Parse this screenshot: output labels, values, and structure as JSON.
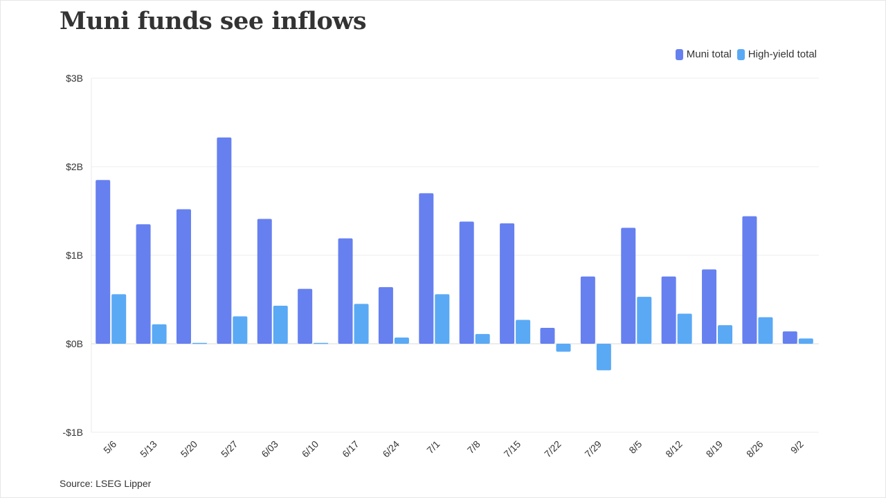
{
  "title": "Muni funds see inflows",
  "source": "Source: LSEG Lipper",
  "legend": [
    {
      "label": "Muni total",
      "color": "#6680f0"
    },
    {
      "label": "High-yield total",
      "color": "#5aa9f5"
    }
  ],
  "chart_data": {
    "type": "bar",
    "categories": [
      "5/6",
      "5/13",
      "5/20",
      "5/27",
      "6/03",
      "6/10",
      "6/17",
      "6/24",
      "7/1",
      "7/8",
      "7/15",
      "7/22",
      "7/29",
      "8/5",
      "8/12",
      "8/19",
      "8/26",
      "9/2"
    ],
    "series": [
      {
        "name": "Muni total",
        "color": "#6680f0",
        "values": [
          1.85,
          1.35,
          1.52,
          2.33,
          1.41,
          0.62,
          1.19,
          0.64,
          1.7,
          1.38,
          1.36,
          0.18,
          0.76,
          1.31,
          0.76,
          0.84,
          1.44,
          0.14
        ]
      },
      {
        "name": "High-yield total",
        "color": "#5aa9f5",
        "values": [
          0.56,
          0.22,
          0.01,
          0.31,
          0.43,
          0.01,
          0.45,
          0.07,
          0.56,
          0.11,
          0.27,
          -0.09,
          -0.3,
          0.53,
          0.34,
          0.21,
          0.3,
          0.06
        ]
      }
    ],
    "ylim": [
      -1,
      3
    ],
    "yticks": [
      -1,
      0,
      1,
      2,
      3
    ],
    "ytick_labels": [
      "-$1B",
      "$0B",
      "$1B",
      "$2B",
      "$3B"
    ],
    "xlabel": "",
    "ylabel": "",
    "grid": true,
    "legend_position": "top-right"
  }
}
